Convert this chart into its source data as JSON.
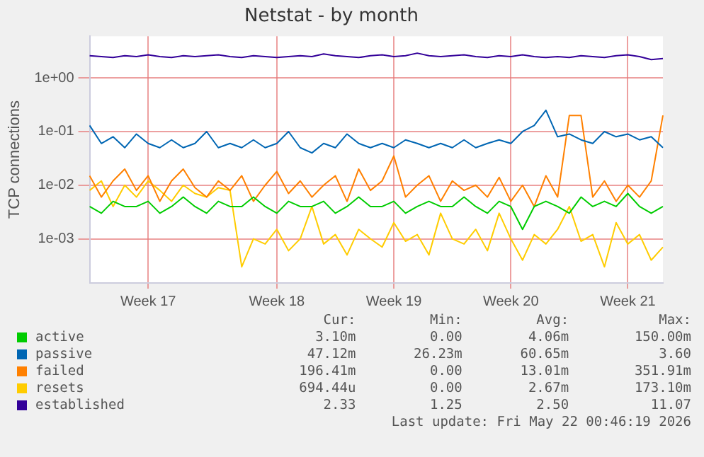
{
  "chart_data": {
    "type": "line",
    "title": "Netstat - by month",
    "ylabel": "TCP connections",
    "log": true,
    "grid": true,
    "legend": "bottom",
    "marker": "none",
    "line_style": "solid",
    "categories": [
      null,
      null,
      null,
      null,
      null,
      "Week 17",
      null,
      null,
      null,
      null,
      null,
      null,
      null,
      null,
      null,
      null,
      "Week 18",
      null,
      null,
      null,
      null,
      null,
      null,
      null,
      null,
      null,
      "Week 19",
      null,
      null,
      null,
      null,
      null,
      null,
      null,
      null,
      null,
      "Week 20",
      null,
      null,
      null,
      null,
      null,
      null,
      null,
      null,
      null,
      "Week 21",
      null,
      null,
      null
    ],
    "ylim": [
      0.00015,
      6
    ],
    "yticks": [
      {
        "value": 0.001,
        "label": "1e-03"
      },
      {
        "value": 0.01,
        "label": "1e-02"
      },
      {
        "value": 0.1,
        "label": "1e-01"
      },
      {
        "value": 1,
        "label": "1e+00"
      }
    ],
    "series": [
      {
        "name": "active",
        "color": "#00cc00",
        "values": [
          0.004,
          0.003,
          0.005,
          0.004,
          0.004,
          0.005,
          0.003,
          0.004,
          0.006,
          0.004,
          0.003,
          0.005,
          0.004,
          0.004,
          0.006,
          0.004,
          0.003,
          0.005,
          0.004,
          0.004,
          0.005,
          0.003,
          0.004,
          0.006,
          0.004,
          0.004,
          0.005,
          0.003,
          0.004,
          0.005,
          0.004,
          0.004,
          0.006,
          0.004,
          0.003,
          0.005,
          0.004,
          0.0015,
          0.004,
          0.005,
          0.004,
          0.003,
          0.006,
          0.004,
          0.005,
          0.004,
          0.007,
          0.004,
          0.003,
          0.004
        ]
      },
      {
        "name": "passive",
        "color": "#0066b3",
        "values": [
          0.13,
          0.06,
          0.08,
          0.05,
          0.09,
          0.06,
          0.05,
          0.07,
          0.05,
          0.06,
          0.1,
          0.05,
          0.06,
          0.05,
          0.07,
          0.05,
          0.06,
          0.1,
          0.05,
          0.04,
          0.06,
          0.05,
          0.09,
          0.06,
          0.05,
          0.06,
          0.05,
          0.07,
          0.06,
          0.05,
          0.06,
          0.05,
          0.07,
          0.05,
          0.06,
          0.07,
          0.06,
          0.1,
          0.13,
          0.25,
          0.08,
          0.09,
          0.07,
          0.06,
          0.1,
          0.08,
          0.09,
          0.07,
          0.08,
          0.05
        ]
      },
      {
        "name": "failed",
        "color": "#ff8000",
        "values": [
          0.015,
          0.006,
          0.012,
          0.02,
          0.008,
          0.015,
          0.005,
          0.012,
          0.02,
          0.009,
          0.006,
          0.012,
          0.008,
          0.015,
          0.005,
          0.01,
          0.018,
          0.007,
          0.012,
          0.006,
          0.01,
          0.015,
          0.005,
          0.02,
          0.008,
          0.012,
          0.035,
          0.006,
          0.01,
          0.015,
          0.005,
          0.012,
          0.008,
          0.01,
          0.006,
          0.014,
          0.005,
          0.01,
          0.004,
          0.015,
          0.006,
          0.2,
          0.2,
          0.006,
          0.012,
          0.005,
          0.01,
          0.006,
          0.012,
          0.2
        ]
      },
      {
        "name": "resets",
        "color": "#ffcc00",
        "values": [
          0.008,
          0.012,
          0.004,
          0.01,
          0.006,
          0.012,
          0.008,
          0.005,
          0.01,
          0.007,
          0.006,
          0.009,
          0.008,
          0.0003,
          0.001,
          0.0008,
          0.0015,
          0.0006,
          0.001,
          0.004,
          0.0008,
          0.0012,
          0.0005,
          0.0015,
          0.001,
          0.0007,
          0.002,
          0.0009,
          0.0012,
          0.0005,
          0.003,
          0.001,
          0.0008,
          0.0015,
          0.0006,
          0.003,
          0.001,
          0.0004,
          0.0012,
          0.0008,
          0.0015,
          0.004,
          0.0009,
          0.0012,
          0.0003,
          0.002,
          0.0008,
          0.0012,
          0.0004,
          0.0007
        ]
      },
      {
        "name": "established",
        "color": "#330099",
        "values": [
          2.6,
          2.5,
          2.4,
          2.6,
          2.5,
          2.7,
          2.5,
          2.4,
          2.6,
          2.5,
          2.6,
          2.7,
          2.5,
          2.4,
          2.6,
          2.5,
          2.4,
          2.5,
          2.6,
          2.5,
          2.8,
          2.6,
          2.5,
          2.4,
          2.6,
          2.7,
          2.5,
          2.6,
          2.9,
          2.6,
          2.5,
          2.6,
          2.7,
          2.5,
          2.4,
          2.6,
          2.5,
          2.7,
          2.5,
          2.4,
          2.5,
          2.4,
          2.6,
          2.5,
          2.4,
          2.6,
          2.7,
          2.5,
          2.2,
          2.3
        ]
      }
    ],
    "annotations": [
      "Cur:",
      "Min:",
      "Avg:",
      "Max:",
      "3.10m",
      "0.00",
      "4.06m",
      "150.00m",
      "47.12m",
      "26.23m",
      "60.65m",
      "3.60",
      "196.41m",
      "0.00",
      "13.01m",
      "351.91m",
      "694.44u",
      "0.00",
      "2.67m",
      "173.10m",
      "2.33",
      "1.25",
      "2.50",
      "11.07",
      "Last update: Fri May 22 00:46:19 2026"
    ]
  }
}
